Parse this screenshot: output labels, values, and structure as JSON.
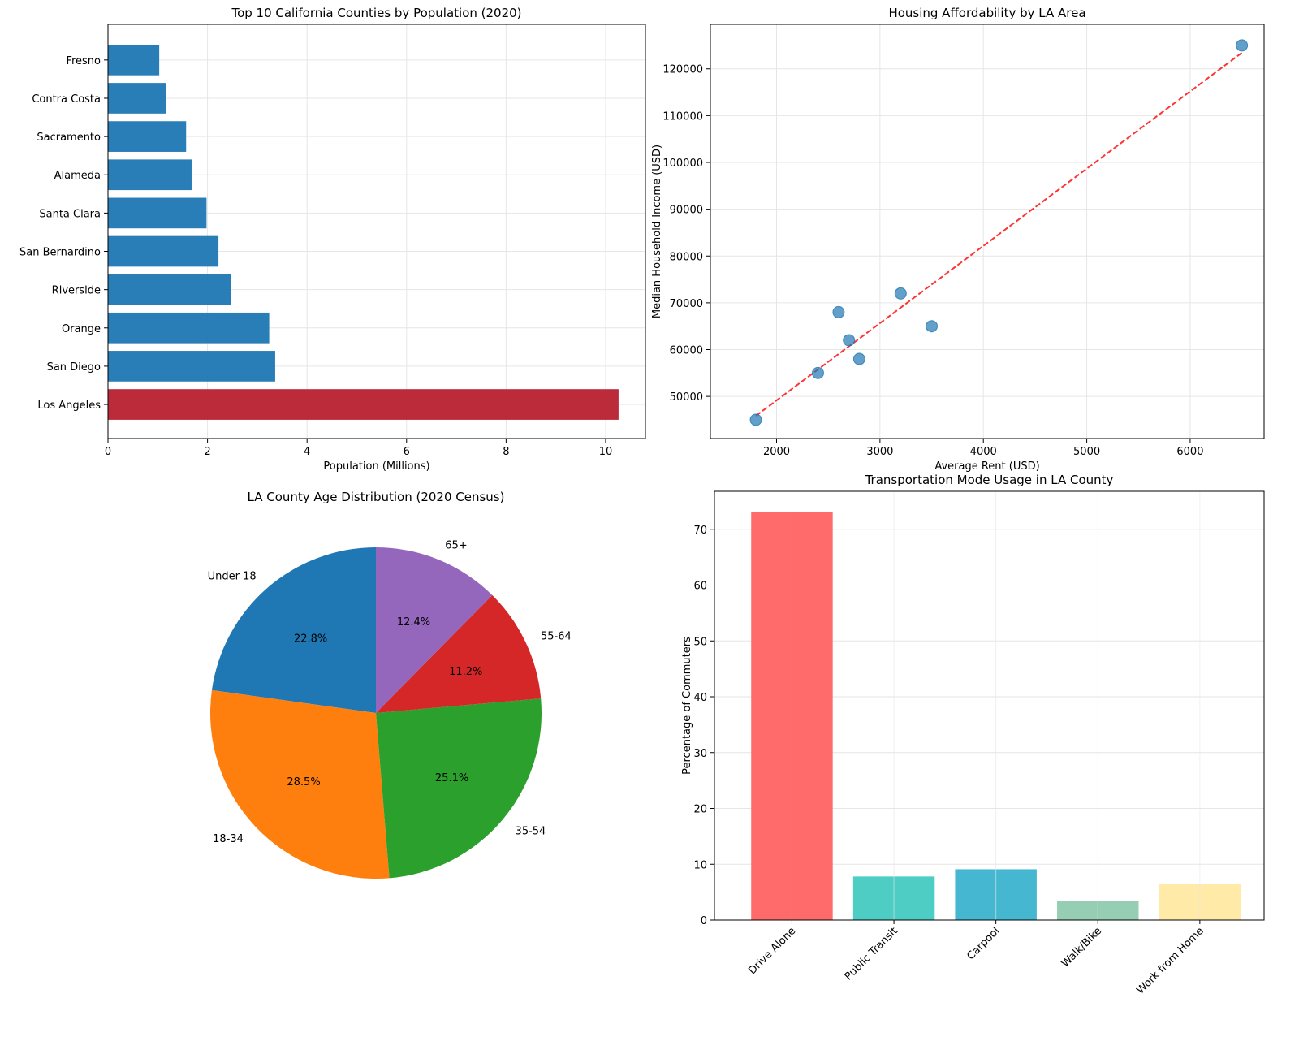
{
  "chart_data": [
    {
      "type": "bar",
      "orientation": "horizontal",
      "title": "Top 10 California Counties by Population (2020)",
      "xlabel": "Population (Millions)",
      "ylabel": "",
      "categories": [
        "Los Angeles",
        "San Diego",
        "Orange",
        "Riverside",
        "San Bernardino",
        "Santa Clara",
        "Alameda",
        "Sacramento",
        "Contra Costa",
        "Fresno"
      ],
      "values": [
        10.26,
        3.36,
        3.24,
        2.47,
        2.22,
        1.98,
        1.68,
        1.57,
        1.16,
        1.03
      ],
      "highlight": "Los Angeles",
      "colors": {
        "default": "#1f77b4",
        "highlight": "#b8202f"
      },
      "xlim": [
        0,
        10.8
      ],
      "xticks": [
        0,
        2,
        4,
        6,
        8,
        10
      ],
      "grid": true
    },
    {
      "type": "scatter",
      "title": "Housing Affordability by LA Area",
      "xlabel": "Average Rent (USD)",
      "ylabel": "Median Household Income (USD)",
      "x": [
        1800,
        2400,
        2600,
        2700,
        2800,
        3200,
        3500,
        6500
      ],
      "y": [
        45000,
        55000,
        68000,
        62000,
        58000,
        72000,
        65000,
        125000
      ],
      "trendline": "linear, red dashed",
      "xlim": [
        1360,
        6715
      ],
      "ylim": [
        41000,
        129500
      ],
      "xticks": [
        2000,
        3000,
        4000,
        5000,
        6000
      ],
      "yticks": [
        50000,
        60000,
        70000,
        80000,
        90000,
        100000,
        110000,
        120000
      ],
      "colors": {
        "points": "#1f77b4",
        "trend": "#ff0000"
      },
      "grid": true
    },
    {
      "type": "pie",
      "title": "LA County Age Distribution (2020 Census)",
      "labels": [
        "Under 18",
        "18-34",
        "35-54",
        "55-64",
        "65+"
      ],
      "values": [
        22.8,
        28.5,
        25.1,
        11.2,
        12.4
      ],
      "colors": [
        "#1f77b4",
        "#ff7f0e",
        "#2ca02c",
        "#d62728",
        "#9467bd"
      ],
      "start_angle": 90
    },
    {
      "type": "bar",
      "title": "Transportation Mode Usage in LA County",
      "xlabel": "",
      "ylabel": "Percentage of Commuters",
      "categories": [
        "Drive Alone",
        "Public Transit",
        "Carpool",
        "Walk/Bike",
        "Work from Home"
      ],
      "values": [
        73.1,
        7.8,
        9.1,
        3.4,
        6.5
      ],
      "colors": [
        "#ff6b6b",
        "#4ecdc4",
        "#45b7d1",
        "#96ceb4",
        "#ffeaa7"
      ],
      "ylim": [
        0,
        76.8
      ],
      "yticks": [
        0,
        10,
        20,
        30,
        40,
        50,
        60,
        70
      ],
      "grid": true
    }
  ]
}
